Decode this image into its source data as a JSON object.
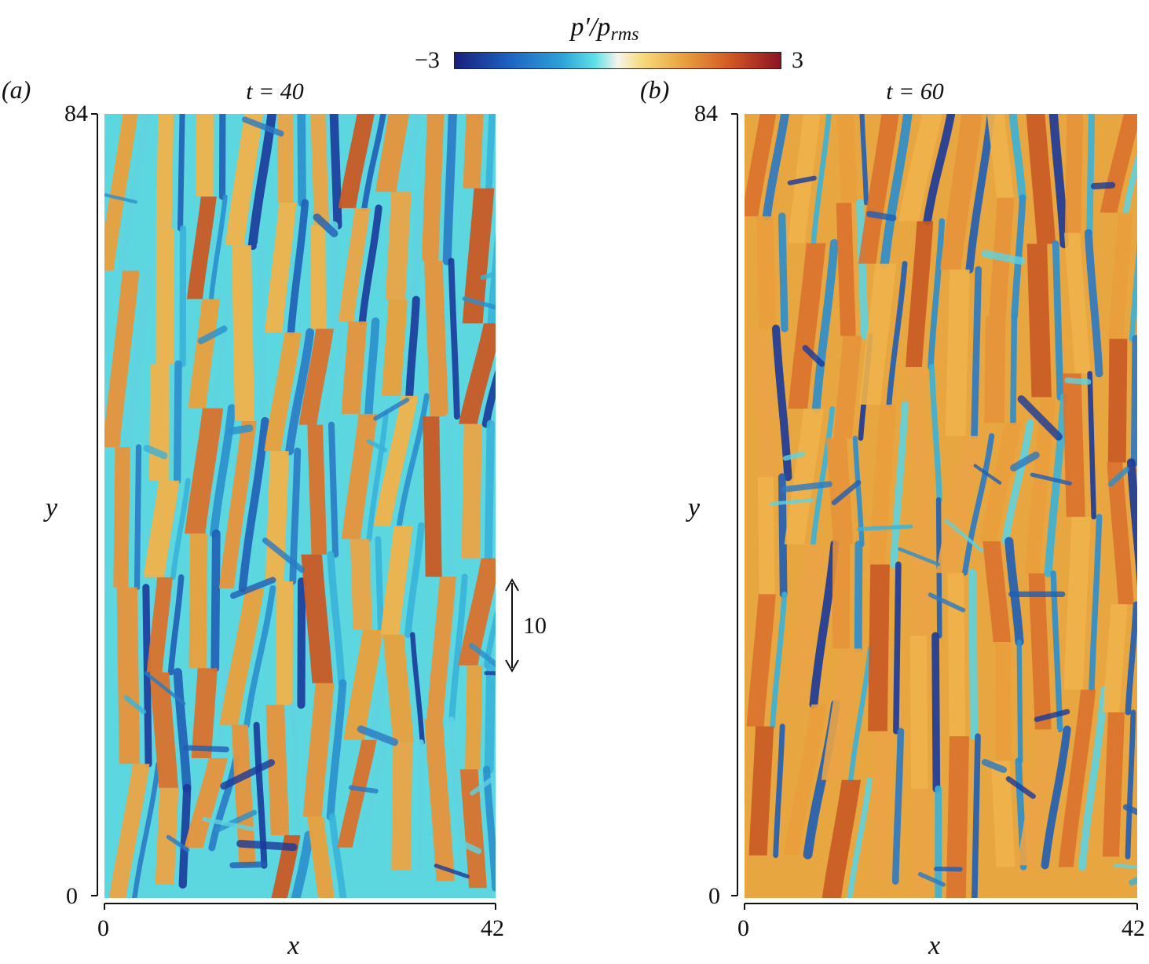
{
  "colorbar": {
    "label_main": "p′/p",
    "label_sub": "rms",
    "min_label": "−3",
    "max_label": "3",
    "colors": [
      "#1a1f7a",
      "#1d5fbf",
      "#2ea3d8",
      "#5ee0e8",
      "#f4f4ea",
      "#f7d879",
      "#e8a23f",
      "#d25b24",
      "#8b1224"
    ]
  },
  "panels": [
    {
      "label": "(a)",
      "title": "t = 40",
      "xlabel": "x",
      "ylabel": "y",
      "xticks": [
        "0",
        "42"
      ],
      "yticks": [
        "0",
        "84"
      ],
      "scale_bar_label": "10"
    },
    {
      "label": "(b)",
      "title": "t = 60",
      "xlabel": "x",
      "ylabel": "y",
      "xticks": [
        "0",
        "42"
      ],
      "yticks": [
        "0",
        "84"
      ]
    }
  ]
}
